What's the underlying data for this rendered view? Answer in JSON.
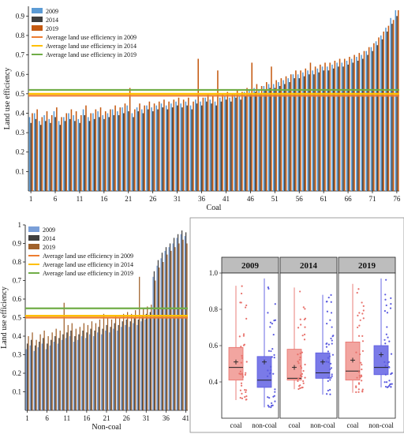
{
  "chart_data": [
    {
      "type": "bar",
      "xlabel": "Coal",
      "ylabel": "Land use efficiency",
      "ylim": [
        0,
        0.95
      ],
      "yticks": [
        "0.1",
        "0.2",
        "0.3",
        "0.4",
        "0.5",
        "0.6",
        "0.7",
        "0.8",
        "0.9"
      ],
      "xticks": [
        "1",
        "6",
        "11",
        "16",
        "21",
        "26",
        "31",
        "36",
        "41",
        "46",
        "51",
        "56",
        "61",
        "66",
        "71",
        "76"
      ],
      "legend_position": "top-left",
      "colors": {
        "2009": "#5b9bd5",
        "2014": "#404040",
        "2019": "#c55a11"
      },
      "avg_colors": {
        "2009": "#ed7d31",
        "2014": "#ffc000",
        "2019": "#70ad47"
      },
      "series": [
        {
          "name": "2009",
          "values": [
            0.38,
            0.4,
            0.36,
            0.39,
            0.37,
            0.41,
            0.36,
            0.38,
            0.4,
            0.39,
            0.37,
            0.42,
            0.38,
            0.4,
            0.41,
            0.39,
            0.4,
            0.42,
            0.41,
            0.43,
            0.44,
            0.4,
            0.43,
            0.42,
            0.44,
            0.43,
            0.44,
            0.45,
            0.44,
            0.45,
            0.46,
            0.45,
            0.46,
            0.44,
            0.47,
            0.46,
            0.48,
            0.47,
            0.46,
            0.48,
            0.49,
            0.48,
            0.5,
            0.49,
            0.51,
            0.52,
            0.53,
            0.52,
            0.54,
            0.55,
            0.55,
            0.56,
            0.57,
            0.58,
            0.6,
            0.6,
            0.61,
            0.62,
            0.62,
            0.63,
            0.64,
            0.64,
            0.65,
            0.66,
            0.66,
            0.67,
            0.68,
            0.69,
            0.7,
            0.72,
            0.74,
            0.77,
            0.8,
            0.84,
            0.89,
            0.93
          ]
        },
        {
          "name": "2014",
          "values": [
            0.35,
            0.37,
            0.34,
            0.36,
            0.35,
            0.38,
            0.34,
            0.36,
            0.37,
            0.36,
            0.35,
            0.39,
            0.36,
            0.37,
            0.38,
            0.37,
            0.38,
            0.39,
            0.39,
            0.4,
            0.41,
            0.38,
            0.41,
            0.4,
            0.42,
            0.41,
            0.42,
            0.43,
            0.42,
            0.43,
            0.44,
            0.43,
            0.44,
            0.42,
            0.45,
            0.44,
            0.46,
            0.45,
            0.44,
            0.46,
            0.47,
            0.46,
            0.48,
            0.47,
            0.49,
            0.5,
            0.51,
            0.5,
            0.52,
            0.53,
            0.53,
            0.54,
            0.55,
            0.56,
            0.58,
            0.58,
            0.59,
            0.6,
            0.6,
            0.61,
            0.62,
            0.62,
            0.63,
            0.64,
            0.64,
            0.65,
            0.66,
            0.67,
            0.68,
            0.7,
            0.72,
            0.75,
            0.78,
            0.82,
            0.86,
            0.9
          ]
        },
        {
          "name": "2019",
          "values": [
            0.4,
            0.42,
            0.38,
            0.41,
            0.39,
            0.43,
            0.38,
            0.4,
            0.42,
            0.41,
            0.39,
            0.44,
            0.4,
            0.42,
            0.43,
            0.41,
            0.42,
            0.44,
            0.43,
            0.45,
            0.53,
            0.42,
            0.45,
            0.44,
            0.46,
            0.45,
            0.46,
            0.47,
            0.46,
            0.47,
            0.48,
            0.47,
            0.48,
            0.46,
            0.68,
            0.48,
            0.5,
            0.49,
            0.62,
            0.5,
            0.51,
            0.5,
            0.52,
            0.51,
            0.53,
            0.66,
            0.55,
            0.54,
            0.56,
            0.64,
            0.57,
            0.58,
            0.59,
            0.6,
            0.62,
            0.62,
            0.63,
            0.66,
            0.64,
            0.65,
            0.66,
            0.66,
            0.67,
            0.68,
            0.68,
            0.69,
            0.7,
            0.71,
            0.72,
            0.74,
            0.76,
            0.79,
            0.82,
            0.85,
            0.88,
            0.93
          ]
        }
      ],
      "averages": [
        {
          "name": "Average land use efficiency in 2009",
          "value": 0.49
        },
        {
          "name": "Average land use efficiency in 2014",
          "value": 0.5
        },
        {
          "name": "Average land use efficiency in 2019",
          "value": 0.52
        }
      ]
    },
    {
      "type": "bar",
      "xlabel": "Non-coal",
      "ylabel": "Land use efficiency",
      "ylim": [
        0,
        1.0
      ],
      "yticks": [
        "0.1",
        "0.2",
        "0.3",
        "0.4",
        "0.5",
        "0.6",
        "0.7",
        "0.8",
        "0.9",
        "1"
      ],
      "xticks": [
        "1",
        "6",
        "11",
        "16",
        "21",
        "26",
        "31",
        "36",
        "41"
      ],
      "legend_position": "top-left",
      "colors": {
        "2009": "#7a9fd8",
        "2014": "#404040",
        "2019": "#a0612b"
      },
      "avg_colors": {
        "2009": "#ed7d31",
        "2014": "#ffc000",
        "2019": "#70ad47"
      },
      "series": [
        {
          "name": "2009",
          "values": [
            0.33,
            0.35,
            0.32,
            0.34,
            0.36,
            0.33,
            0.35,
            0.37,
            0.36,
            0.38,
            0.39,
            0.4,
            0.37,
            0.38,
            0.4,
            0.39,
            0.41,
            0.4,
            0.42,
            0.41,
            0.43,
            0.42,
            0.44,
            0.43,
            0.45,
            0.46,
            0.45,
            0.47,
            0.46,
            0.48,
            0.49,
            0.5,
            0.72,
            0.78,
            0.82,
            0.86,
            0.88,
            0.9,
            0.93,
            0.95,
            0.94
          ]
        },
        {
          "name": "2014",
          "values": [
            0.36,
            0.38,
            0.35,
            0.37,
            0.39,
            0.36,
            0.38,
            0.4,
            0.39,
            0.41,
            0.42,
            0.43,
            0.4,
            0.41,
            0.43,
            0.42,
            0.44,
            0.43,
            0.45,
            0.44,
            0.46,
            0.45,
            0.47,
            0.46,
            0.48,
            0.49,
            0.48,
            0.5,
            0.49,
            0.51,
            0.52,
            0.53,
            0.75,
            0.81,
            0.85,
            0.88,
            0.9,
            0.93,
            0.95,
            0.97,
            0.96
          ]
        },
        {
          "name": "2019",
          "values": [
            0.4,
            0.42,
            0.38,
            0.41,
            0.43,
            0.4,
            0.42,
            0.44,
            0.43,
            0.58,
            0.46,
            0.47,
            0.44,
            0.45,
            0.47,
            0.46,
            0.48,
            0.47,
            0.49,
            0.52,
            0.5,
            0.49,
            0.51,
            0.5,
            0.52,
            0.53,
            0.52,
            0.54,
            0.72,
            0.55,
            0.56,
            0.57,
            0.7,
            0.77,
            0.8,
            0.84,
            0.86,
            0.88,
            0.9,
            0.92,
            0.9
          ]
        }
      ],
      "averages": [
        {
          "name": "Average land use efficiency in 2009",
          "value": 0.5
        },
        {
          "name": "Average land use efficiency in 2014",
          "value": 0.51
        },
        {
          "name": "Average land use efficiency in 2019",
          "value": 0.55
        }
      ]
    },
    {
      "type": "box",
      "ylim": [
        0.2,
        1.0
      ],
      "yticks": [
        "0.4",
        "0.6",
        "0.8",
        "1.0"
      ],
      "panels": [
        {
          "label": "2009",
          "groups": [
            {
              "name": "coal",
              "color": "#e8716b",
              "fill": "#f2a5a0",
              "whisker_low": 0.3,
              "q1": 0.41,
              "median": 0.48,
              "q3": 0.59,
              "whisker_high": 0.93,
              "mean": 0.51
            },
            {
              "name": "non-coal",
              "color": "#5a5ae0",
              "fill": "#7a7ae8",
              "whisker_low": 0.26,
              "q1": 0.37,
              "median": 0.41,
              "q3": 0.54,
              "whisker_high": 0.97,
              "mean": 0.51
            }
          ]
        },
        {
          "label": "2014",
          "groups": [
            {
              "name": "coal",
              "color": "#e8716b",
              "fill": "#f2a5a0",
              "whisker_low": 0.36,
              "q1": 0.41,
              "median": 0.42,
              "q3": 0.58,
              "whisker_high": 0.92,
              "mean": 0.48
            },
            {
              "name": "non-coal",
              "color": "#5a5ae0",
              "fill": "#7a7ae8",
              "whisker_low": 0.33,
              "q1": 0.42,
              "median": 0.45,
              "q3": 0.56,
              "whisker_high": 0.88,
              "mean": 0.51
            }
          ]
        },
        {
          "label": "2019",
          "groups": [
            {
              "name": "coal",
              "color": "#e8716b",
              "fill": "#f2a5a0",
              "whisker_low": 0.34,
              "q1": 0.41,
              "median": 0.46,
              "q3": 0.62,
              "whisker_high": 0.94,
              "mean": 0.52
            },
            {
              "name": "non-coal",
              "color": "#5a5ae0",
              "fill": "#7a7ae8",
              "whisker_low": 0.37,
              "q1": 0.44,
              "median": 0.48,
              "q3": 0.6,
              "whisker_high": 0.97,
              "mean": 0.55
            }
          ]
        }
      ]
    }
  ]
}
